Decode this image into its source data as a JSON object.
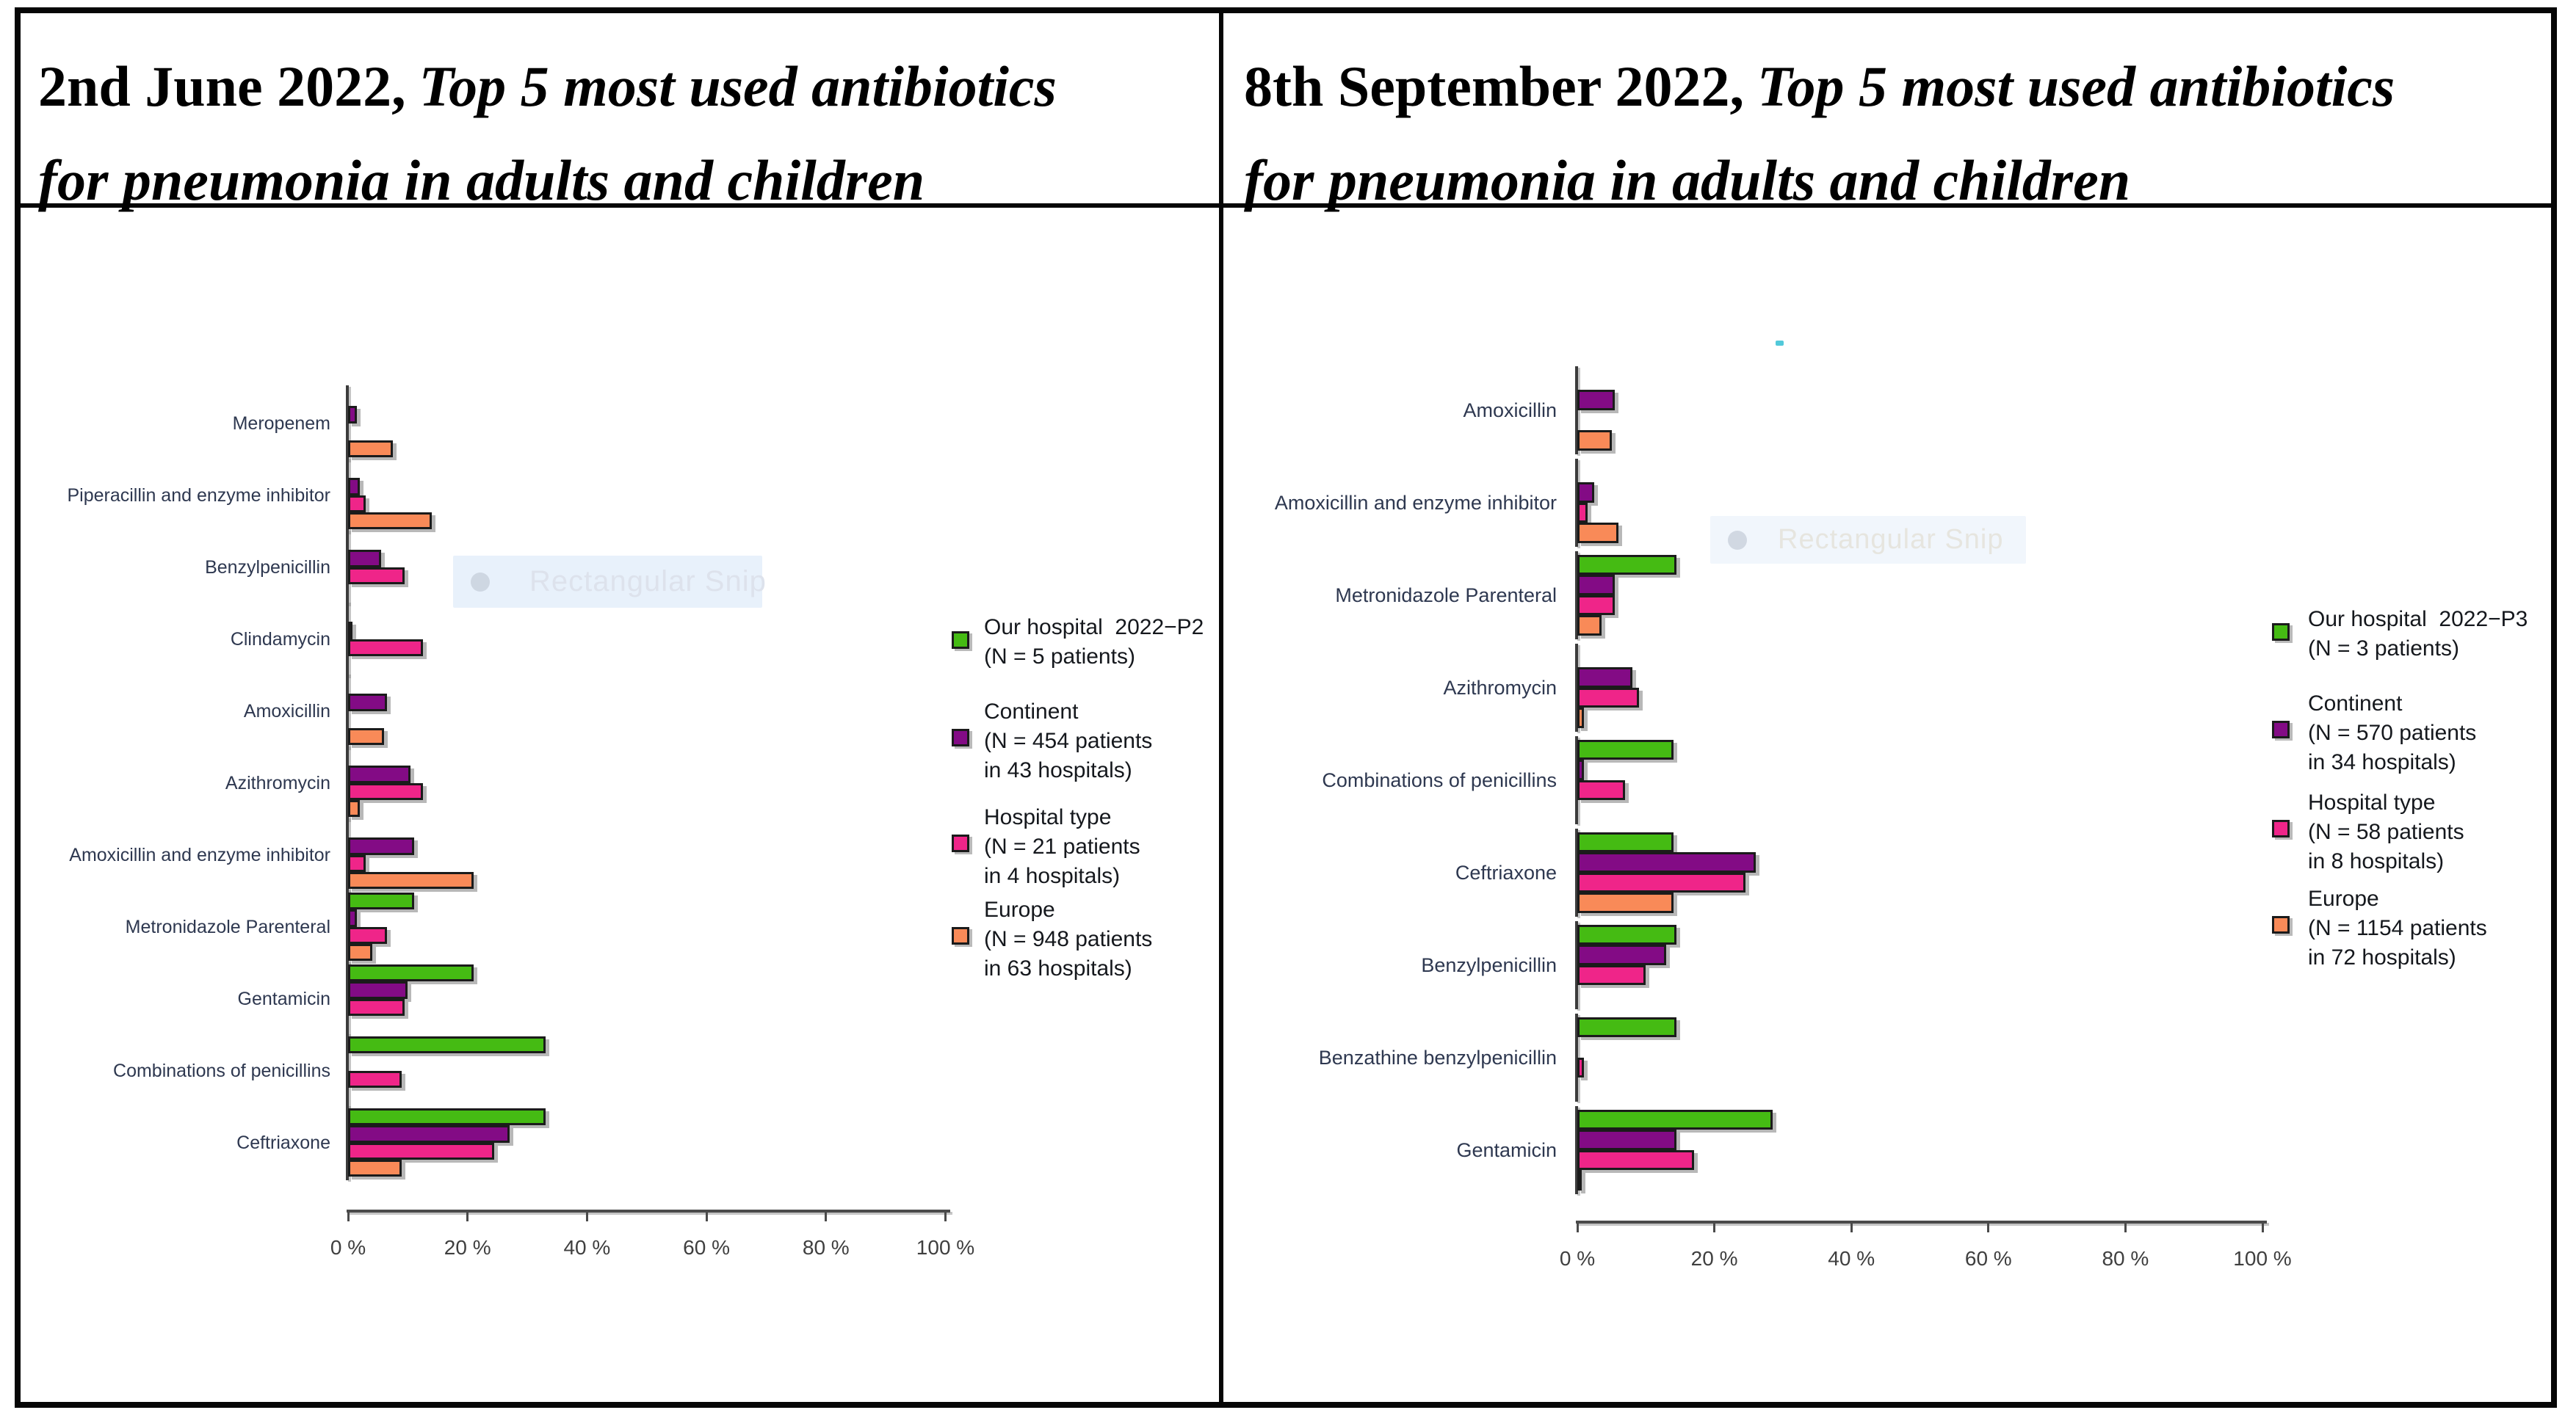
{
  "page": {
    "background": "#ffffff"
  },
  "colors": {
    "hospital": "#45bb13",
    "continent": "#830b85",
    "hospital_type": "#ef2589",
    "europe": "#f98a58",
    "bar_border": "#1b1b1b",
    "axis": "#4a4a4a",
    "category_label": "#2e3850",
    "tick_label": "#3f3f3f",
    "legend_text": "#15181d",
    "title_text": "#000000",
    "watermark_bg": "#e4eefa",
    "watermark_text": "#dde2ec"
  },
  "watermark": {
    "text": "Rectangular Snip"
  },
  "chart_data": [
    {
      "type": "bar",
      "orientation": "horizontal",
      "title": "2nd June 2022, Top 5 most used antibiotics for pneumonia in adults and children",
      "title_parts": {
        "bold": "2nd June 2022,",
        "italic_line1": "Top 5 most used antibiotics",
        "italic_line2": "for pneumonia in adults and children"
      },
      "xlabel": "",
      "ylabel": "",
      "xlim": [
        0,
        100
      ],
      "grid": false,
      "legend_position": "right",
      "x_ticks": [
        "0 %",
        "20 %",
        "40 %",
        "60 %",
        "80 %",
        "100 %"
      ],
      "categories": [
        "Meropenem",
        "Piperacillin and enzyme inhibitor",
        "Benzylpenicillin",
        "Clindamycin",
        "Amoxicillin",
        "Azithromycin",
        "Amoxicillin and enzyme inhibitor",
        "Metronidazole Parenteral",
        "Gentamicin",
        "Combinations of penicillins",
        "Ceftriaxone"
      ],
      "series": [
        {
          "name": "Our hospital 2022-P2 (N = 5 patients)",
          "color_key": "hospital",
          "legend_lines": [
            "Our hospital  2022−P2",
            "(N = 5 patients)"
          ],
          "values": [
            null,
            null,
            null,
            null,
            null,
            null,
            null,
            11,
            21,
            33,
            33
          ]
        },
        {
          "name": "Continent (N = 454 patients in 43 hospitals)",
          "color_key": "continent",
          "legend_lines": [
            "Continent",
            "(N = 454 patients",
            "in 43 hospitals)"
          ],
          "values": [
            1.5,
            2,
            5.5,
            0.5,
            6.5,
            10.5,
            11,
            1.5,
            10,
            null,
            27
          ]
        },
        {
          "name": "Hospital type (N = 21 patients in 4 hospitals)",
          "color_key": "hospital_type",
          "legend_lines": [
            "Hospital type",
            "(N = 21 patients",
            "in 4 hospitals)"
          ],
          "values": [
            null,
            3,
            9.5,
            12.5,
            null,
            12.5,
            3,
            6.5,
            9.5,
            9,
            24.5
          ]
        },
        {
          "name": "Europe (N = 948 patients in 63 hospitals)",
          "color_key": "europe",
          "legend_lines": [
            "Europe",
            "(N = 948 patients",
            "in 63 hospitals)"
          ],
          "values": [
            7.5,
            14,
            null,
            null,
            6,
            2,
            21,
            4,
            null,
            null,
            9
          ]
        }
      ]
    },
    {
      "type": "bar",
      "orientation": "horizontal",
      "title": "8th September 2022, Top 5 most used antibiotics for pneumonia in adults and children",
      "title_parts": {
        "bold": "8th September 2022,",
        "italic_line1": "Top 5 most used antibiotics",
        "italic_line2": "for pneumonia in adults and children"
      },
      "xlabel": "",
      "ylabel": "",
      "xlim": [
        0,
        100
      ],
      "grid": false,
      "legend_position": "right",
      "x_ticks": [
        "0 %",
        "20 %",
        "40 %",
        "60 %",
        "80 %",
        "100 %"
      ],
      "categories": [
        "Amoxicillin",
        "Amoxicillin and enzyme inhibitor",
        "Metronidazole Parenteral",
        "Azithromycin",
        "Combinations of penicillins",
        "Ceftriaxone",
        "Benzylpenicillin",
        "Benzathine benzylpenicillin",
        "Gentamicin"
      ],
      "series": [
        {
          "name": "Our hospital 2022-P3 (N = 3 patients)",
          "color_key": "hospital",
          "legend_lines": [
            "Our hospital  2022−P3",
            "(N = 3 patients)"
          ],
          "values": [
            null,
            null,
            14.5,
            null,
            14,
            14,
            14.5,
            14.5,
            28.5
          ]
        },
        {
          "name": "Continent (N = 570 patients in 34 hospitals)",
          "color_key": "continent",
          "legend_lines": [
            "Continent",
            "(N = 570 patients",
            "in 34 hospitals)"
          ],
          "values": [
            5.5,
            2.5,
            5.5,
            8,
            1,
            26,
            13,
            null,
            14.5
          ]
        },
        {
          "name": "Hospital type (N = 58 patients in 8 hospitals)",
          "color_key": "hospital_type",
          "legend_lines": [
            "Hospital type",
            "(N = 58 patients",
            "in 8 hospitals)"
          ],
          "values": [
            null,
            1.5,
            5.5,
            9,
            7,
            24.5,
            10,
            1,
            17
          ]
        },
        {
          "name": "Europe (N = 1154 patients in 72 hospitals)",
          "color_key": "europe",
          "legend_lines": [
            "Europe",
            "(N = 1154 patients",
            "in 72 hospitals)"
          ],
          "values": [
            5,
            6,
            3.5,
            1,
            null,
            14,
            null,
            null,
            0.5
          ]
        }
      ]
    }
  ]
}
